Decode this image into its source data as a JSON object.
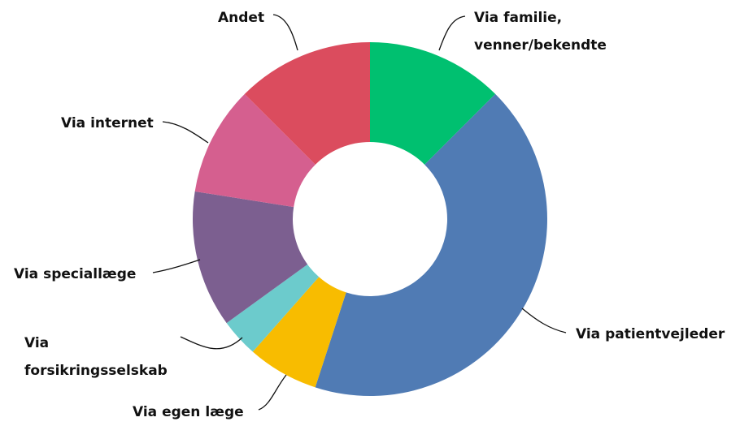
{
  "chart_data": {
    "type": "donut",
    "categories": [
      "Via familie, venner/bekendte",
      "Via patientvejleder",
      "Via egen læge",
      "Via forsikringsselskab",
      "Via speciallæge",
      "Via internet",
      "Andet"
    ],
    "values": [
      12.5,
      42.5,
      6.5,
      3.5,
      12.5,
      10,
      12.5
    ],
    "colors": [
      "#00c070",
      "#507bb4",
      "#f8bc00",
      "#6ccbcc",
      "#7c5f90",
      "#d55f8f",
      "#db4c5e"
    ]
  }
}
